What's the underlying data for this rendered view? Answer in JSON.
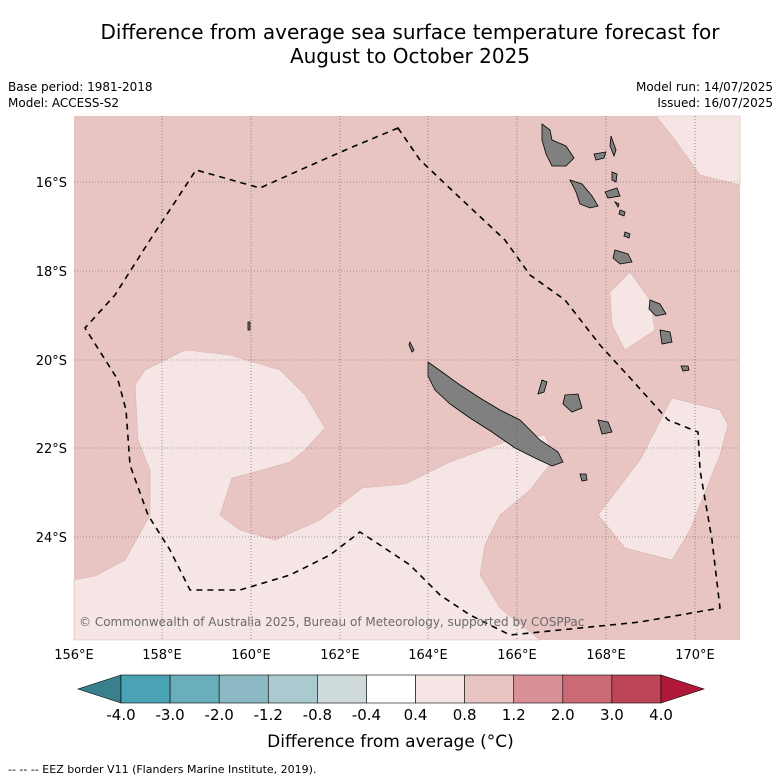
{
  "title_line1": "Difference from average sea surface temperature forecast for",
  "title_line2": "August to October 2025",
  "base_period": "Base period: 1981-2018",
  "model": "Model: ACCESS-S2",
  "model_run": "Model run: 14/07/2025",
  "issued": "Issued: 16/07/2025",
  "copyright": "© Commonwealth of Australia 2025, Bureau of Meteorology, supported by COSPPac",
  "lat_labels": [
    "16°S",
    "18°S",
    "20°S",
    "22°S",
    "24°S"
  ],
  "lon_labels": [
    "156°E",
    "158°E",
    "160°E",
    "162°E",
    "164°E",
    "166°E",
    "168°E",
    "170°E"
  ],
  "colorbar": {
    "title": "Difference from average (°C)",
    "tick_labels": [
      "-4.0",
      "-3.0",
      "-2.0",
      "-1.2",
      "-0.8",
      "-0.4",
      "0.4",
      "0.8",
      "1.2",
      "2.0",
      "3.0",
      "4.0"
    ],
    "colors": [
      "#3a7f8e",
      "#4aa3b4",
      "#6aaebc",
      "#8cb9c4",
      "#aacacf",
      "#cfdadb",
      "#ffffff",
      "#f5e6e5",
      "#e8c5c2",
      "#d98f96",
      "#ca6a74",
      "#bd4455",
      "#b0183a"
    ]
  },
  "legend_footer": "--  --  -- EEZ border V11 (Flanders Marine Institute, 2019).",
  "map_colors": {
    "band_0_4_0_8": "#f5e6e5",
    "band_0_8_1_2": "#e8c5c2",
    "land": "#808080",
    "grid": "#555555"
  }
}
